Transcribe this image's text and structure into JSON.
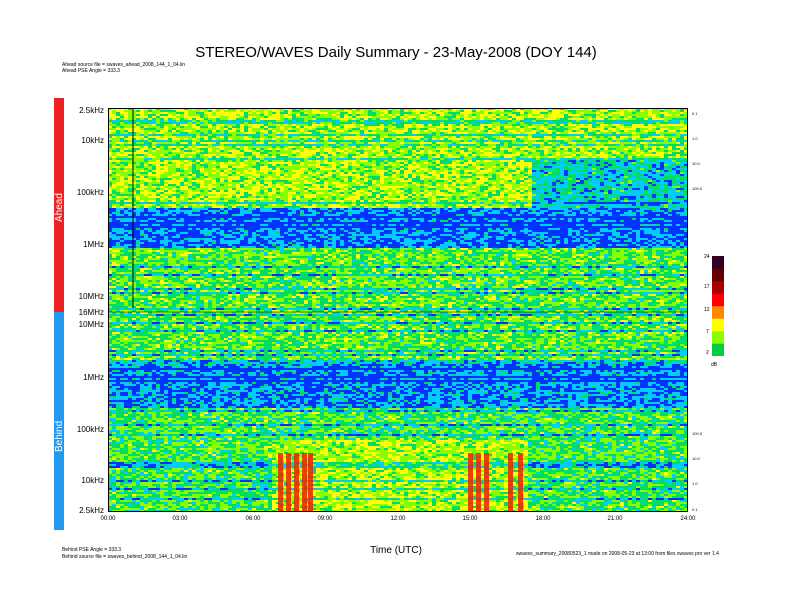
{
  "chart_data": {
    "type": "heatmap",
    "title": "STEREO/WAVES Daily Summary - 23-May-2008 (DOY 144)",
    "xlabel": "Time (UTC)",
    "x_ticks": [
      "00:00",
      "03:00",
      "06:00",
      "09:00",
      "12:00",
      "15:00",
      "18:00",
      "21:00",
      "24:00"
    ],
    "x_range_hours": [
      0,
      24
    ],
    "panels": [
      {
        "name": "Ahead",
        "color": "#ee2222",
        "y_ticks": [
          "2.5kHz",
          "10kHz",
          "100kHz",
          "1MHz",
          "10MHz",
          "16MHz"
        ],
        "right_ticks": [
          "0.1",
          "1.0",
          "10.0",
          "100.0"
        ]
      },
      {
        "name": "Behind",
        "color": "#2299ee",
        "y_ticks": [
          "10MHz",
          "1MHz",
          "100kHz",
          "10kHz",
          "2.5kHz"
        ],
        "right_ticks": [
          "100.0",
          "10.0",
          "1.0",
          "0.1"
        ]
      }
    ],
    "colorbar": {
      "ticks": [
        "24",
        "17",
        "12",
        "7",
        "2"
      ],
      "range": [
        2,
        24
      ],
      "unit": "dB",
      "colors": [
        "#00cc44",
        "#88ff00",
        "#ffff00",
        "#ff8800",
        "#ff0000",
        "#aa0000",
        "#660000",
        "#330022"
      ]
    },
    "background_color": "#0033ff"
  },
  "meta": {
    "ahead_source": "Ahead source file = swaves_ahead_2008_144_1_04.lin",
    "ahead_pse": "Ahead PSE Angle = 333.3",
    "behind_pse": "Behind PSE Angle = 333.3",
    "behind_source": "Behind source file = swaves_behind_2008_144_1_04.lin",
    "footer": "swaves_summary_20080523_1 made on 2008-05-23 at 13:00 from files swaves pro ver 1.4"
  }
}
